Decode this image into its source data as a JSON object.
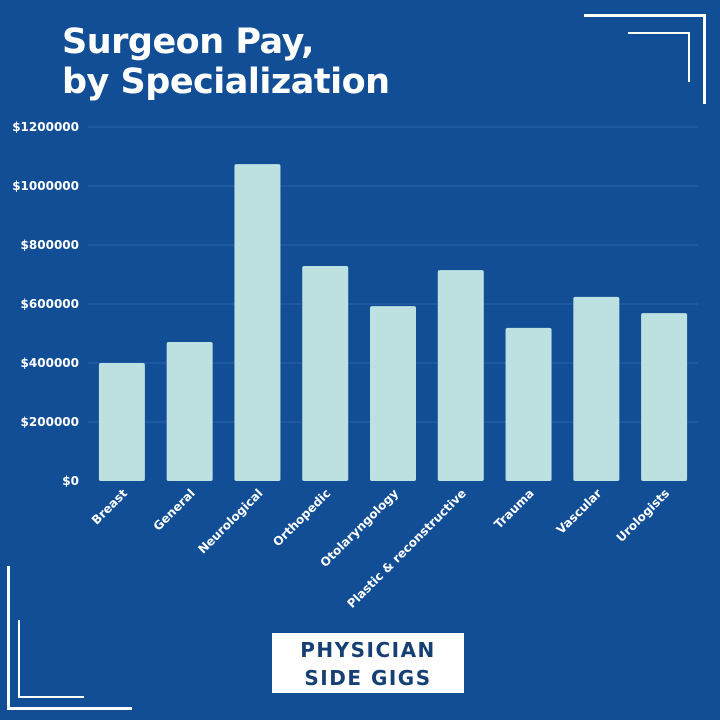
{
  "title_line1": "Surgeon Pay,",
  "title_line2": "by Specialization",
  "logo": {
    "line1": "PHYSICIAN",
    "line2": "SIDE GIGS"
  },
  "colors": {
    "background": "#114e96",
    "bar": "#bde0e0",
    "grid": "#2a62a6",
    "text": "#ffffff"
  },
  "chart_data": {
    "type": "bar",
    "title": "Surgeon Pay, by Specialization",
    "xlabel": "",
    "ylabel": "",
    "ylim": [
      0,
      1200000
    ],
    "grid": true,
    "yticks": [
      0,
      200000,
      400000,
      600000,
      800000,
      1000000,
      1200000
    ],
    "ytick_labels": [
      "$0",
      "$200000",
      "$400000",
      "$600000",
      "$800000",
      "$1000000",
      "$1200000"
    ],
    "categories": [
      "Breast",
      "General",
      "Neurological",
      "Orthopedic",
      "Otolaryngology",
      "Plastic & reconstructive",
      "Trauma",
      "Vascular",
      "Urologists"
    ],
    "values": [
      400000,
      471000,
      1074000,
      729000,
      593000,
      715000,
      519000,
      624000,
      569000
    ]
  }
}
